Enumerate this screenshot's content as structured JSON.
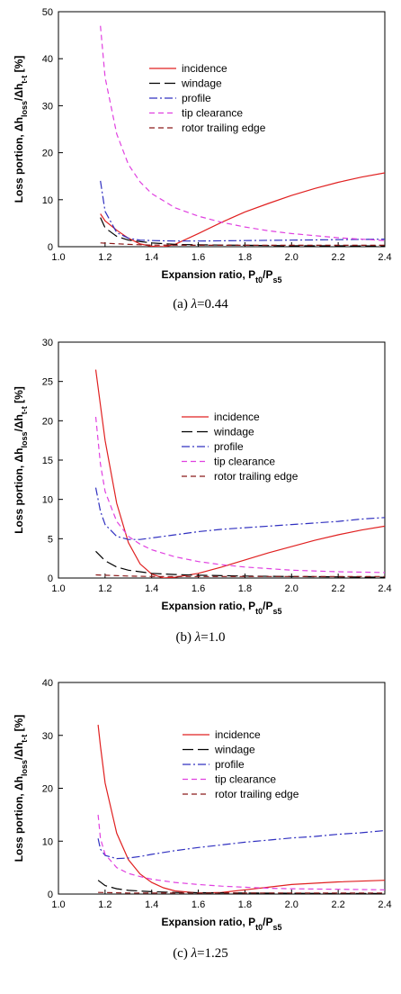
{
  "chart_data": [
    {
      "type": "line",
      "caption": "(a)  λ=0.44",
      "xlabel": "Expansion ratio, Pt0/Ps5",
      "ylabel": "Loss portion, Δhloss/Δht-t [%]",
      "xlim": [
        1.0,
        2.4
      ],
      "ylim": [
        0,
        50
      ],
      "xticks": [
        "1.0",
        "1.2",
        "1.4",
        "1.6",
        "1.8",
        "2.0",
        "2.2",
        "2.4"
      ],
      "yticks": [
        "0",
        "10",
        "20",
        "30",
        "40",
        "50"
      ],
      "legend_position": "upper-center",
      "series": [
        {
          "name": "incidence",
          "color": "#e02020",
          "dash": "solid",
          "x": [
            1.18,
            1.2,
            1.25,
            1.3,
            1.35,
            1.4,
            1.45,
            1.5,
            1.6,
            1.7,
            1.8,
            1.9,
            2.0,
            2.1,
            2.2,
            2.3,
            2.4
          ],
          "y": [
            7.0,
            5.5,
            3.5,
            1.8,
            0.6,
            0.1,
            0.0,
            0.5,
            2.8,
            5.2,
            7.4,
            9.2,
            10.9,
            12.4,
            13.7,
            14.8,
            15.7
          ]
        },
        {
          "name": "windage",
          "color": "#000000",
          "dash": "long",
          "x": [
            1.18,
            1.2,
            1.25,
            1.3,
            1.4,
            1.5,
            1.6,
            1.8,
            2.0,
            2.2,
            2.4
          ],
          "y": [
            6.2,
            4.0,
            2.2,
            1.4,
            0.8,
            0.5,
            0.4,
            0.3,
            0.2,
            0.2,
            0.15
          ]
        },
        {
          "name": "profile",
          "color": "#3030c0",
          "dash": "dashdot",
          "x": [
            1.18,
            1.2,
            1.25,
            1.3,
            1.35,
            1.4,
            1.5,
            1.6,
            1.8,
            2.0,
            2.2,
            2.4
          ],
          "y": [
            14.0,
            7.5,
            3.0,
            1.8,
            1.4,
            1.3,
            1.2,
            1.2,
            1.3,
            1.4,
            1.5,
            1.6
          ]
        },
        {
          "name": "tip clearance",
          "color": "#e040e0",
          "dash": "dashed",
          "x": [
            1.18,
            1.2,
            1.25,
            1.3,
            1.35,
            1.4,
            1.5,
            1.6,
            1.7,
            1.8,
            1.9,
            2.0,
            2.2,
            2.4
          ],
          "y": [
            47.0,
            36.0,
            24.0,
            17.5,
            13.8,
            11.3,
            8.3,
            6.5,
            5.2,
            4.2,
            3.4,
            2.8,
            1.9,
            1.3
          ]
        },
        {
          "name": "rotor trailing edge",
          "color": "#8b1a1a",
          "dash": "dashed",
          "x": [
            1.18,
            1.3,
            1.4,
            1.6,
            1.8,
            2.0,
            2.2,
            2.4
          ],
          "y": [
            0.8,
            0.5,
            0.35,
            0.3,
            0.3,
            0.3,
            0.3,
            0.3
          ]
        }
      ]
    },
    {
      "type": "line",
      "caption": "(b)  λ=1.0",
      "xlabel": "Expansion ratio, Pt0/Ps5",
      "ylabel": "Loss portion, Δhloss/Δht-t [%]",
      "xlim": [
        1.0,
        2.4
      ],
      "ylim": [
        0,
        30
      ],
      "xticks": [
        "1.0",
        "1.2",
        "1.4",
        "1.6",
        "1.8",
        "2.0",
        "2.2",
        "2.4"
      ],
      "yticks": [
        "0",
        "5",
        "10",
        "15",
        "20",
        "25",
        "30"
      ],
      "legend_position": "upper-center",
      "series": [
        {
          "name": "incidence",
          "color": "#e02020",
          "dash": "solid",
          "x": [
            1.16,
            1.18,
            1.2,
            1.25,
            1.3,
            1.35,
            1.4,
            1.45,
            1.5,
            1.6,
            1.7,
            1.8,
            1.9,
            2.0,
            2.1,
            2.2,
            2.3,
            2.4
          ],
          "y": [
            26.5,
            22.0,
            17.5,
            9.5,
            4.5,
            1.8,
            0.5,
            0.0,
            0.1,
            0.6,
            1.4,
            2.3,
            3.2,
            4.0,
            4.8,
            5.5,
            6.1,
            6.6
          ]
        },
        {
          "name": "windage",
          "color": "#000000",
          "dash": "long",
          "x": [
            1.16,
            1.2,
            1.25,
            1.3,
            1.4,
            1.5,
            1.6,
            1.8,
            2.0,
            2.2,
            2.4
          ],
          "y": [
            3.4,
            2.2,
            1.4,
            1.0,
            0.6,
            0.45,
            0.35,
            0.25,
            0.2,
            0.15,
            0.1
          ]
        },
        {
          "name": "profile",
          "color": "#3030c0",
          "dash": "dashdot",
          "x": [
            1.16,
            1.18,
            1.2,
            1.25,
            1.3,
            1.35,
            1.4,
            1.5,
            1.6,
            1.7,
            1.8,
            1.9,
            2.0,
            2.1,
            2.2,
            2.3,
            2.4
          ],
          "y": [
            11.5,
            8.5,
            6.8,
            5.3,
            4.9,
            4.9,
            5.1,
            5.5,
            5.9,
            6.2,
            6.4,
            6.6,
            6.8,
            7.0,
            7.2,
            7.5,
            7.7
          ]
        },
        {
          "name": "tip clearance",
          "color": "#e040e0",
          "dash": "dashed",
          "x": [
            1.16,
            1.18,
            1.2,
            1.25,
            1.3,
            1.35,
            1.4,
            1.5,
            1.6,
            1.7,
            1.8,
            1.9,
            2.0,
            2.2,
            2.4
          ],
          "y": [
            20.5,
            14.5,
            11.0,
            7.2,
            5.3,
            4.3,
            3.6,
            2.7,
            2.1,
            1.7,
            1.4,
            1.2,
            1.0,
            0.8,
            0.7
          ]
        },
        {
          "name": "rotor trailing edge",
          "color": "#8b1a1a",
          "dash": "dashed",
          "x": [
            1.16,
            1.3,
            1.4,
            1.6,
            1.8,
            2.0,
            2.2,
            2.4
          ],
          "y": [
            0.4,
            0.25,
            0.2,
            0.2,
            0.2,
            0.2,
            0.2,
            0.2
          ]
        }
      ]
    },
    {
      "type": "line",
      "caption": "(c)  λ=1.25",
      "xlabel": "Expansion ratio, Pt0/Ps5",
      "ylabel": "Loss portion, Δhloss/Δht-t [%]",
      "xlim": [
        1.0,
        2.4
      ],
      "ylim": [
        0,
        40
      ],
      "xticks": [
        "1.0",
        "1.2",
        "1.4",
        "1.6",
        "1.8",
        "2.0",
        "2.2",
        "2.4"
      ],
      "yticks": [
        "0",
        "10",
        "20",
        "30",
        "40"
      ],
      "legend_position": "upper-center",
      "series": [
        {
          "name": "incidence",
          "color": "#e02020",
          "dash": "solid",
          "x": [
            1.17,
            1.18,
            1.2,
            1.25,
            1.3,
            1.35,
            1.4,
            1.45,
            1.5,
            1.6,
            1.7,
            1.8,
            1.9,
            2.0,
            2.2,
            2.4
          ],
          "y": [
            32.0,
            28.0,
            21.0,
            11.5,
            6.5,
            3.8,
            2.2,
            1.2,
            0.6,
            0.2,
            0.3,
            0.8,
            1.3,
            1.8,
            2.3,
            2.6
          ]
        },
        {
          "name": "windage",
          "color": "#000000",
          "dash": "long",
          "x": [
            1.17,
            1.2,
            1.25,
            1.3,
            1.4,
            1.5,
            1.6,
            1.8,
            2.0,
            2.2,
            2.4
          ],
          "y": [
            2.6,
            1.6,
            1.0,
            0.7,
            0.45,
            0.3,
            0.25,
            0.2,
            0.15,
            0.1,
            0.1
          ]
        },
        {
          "name": "profile",
          "color": "#3030c0",
          "dash": "dashdot",
          "x": [
            1.17,
            1.18,
            1.2,
            1.25,
            1.3,
            1.35,
            1.4,
            1.5,
            1.6,
            1.7,
            1.8,
            1.9,
            2.0,
            2.1,
            2.2,
            2.3,
            2.4
          ],
          "y": [
            10.5,
            8.5,
            7.3,
            6.7,
            6.8,
            7.1,
            7.5,
            8.2,
            8.8,
            9.3,
            9.8,
            10.2,
            10.6,
            10.9,
            11.3,
            11.6,
            12.0
          ]
        },
        {
          "name": "tip clearance",
          "color": "#e040e0",
          "dash": "dashed",
          "x": [
            1.17,
            1.18,
            1.2,
            1.25,
            1.3,
            1.35,
            1.4,
            1.5,
            1.6,
            1.7,
            1.8,
            1.9,
            2.0,
            2.2,
            2.4
          ],
          "y": [
            15.0,
            10.5,
            7.5,
            5.0,
            3.9,
            3.3,
            2.8,
            2.2,
            1.8,
            1.5,
            1.3,
            1.1,
            1.0,
            0.9,
            0.8
          ]
        },
        {
          "name": "rotor trailing edge",
          "color": "#8b1a1a",
          "dash": "dashed",
          "x": [
            1.17,
            1.3,
            1.4,
            1.6,
            1.8,
            2.0,
            2.2,
            2.4
          ],
          "y": [
            0.3,
            0.2,
            0.2,
            0.2,
            0.2,
            0.2,
            0.2,
            0.2
          ]
        }
      ]
    }
  ]
}
